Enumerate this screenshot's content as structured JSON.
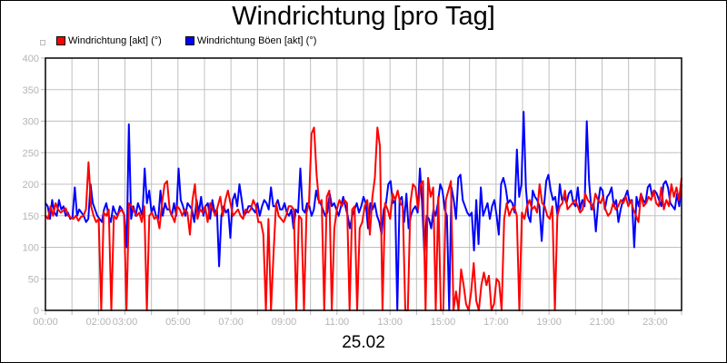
{
  "chart_data": {
    "type": "line",
    "title": "Windrichtung [pro Tag]",
    "xlabel": "25.02",
    "ylabel": "",
    "ylim": [
      0,
      400
    ],
    "xlim_hours": [
      0,
      24
    ],
    "yticks": [
      0,
      50,
      100,
      150,
      200,
      250,
      300,
      350,
      400
    ],
    "xtick_labels": [
      "00:00",
      "02:00",
      "03:00",
      "05:00",
      "07:00",
      "09:00",
      "11:00",
      "13:00",
      "15:00",
      "17:00",
      "19:00",
      "21:00",
      "23:00"
    ],
    "xtick_hours": [
      0,
      2,
      3,
      5,
      7,
      9,
      11,
      13,
      15,
      17,
      19,
      21,
      23
    ],
    "grid": true,
    "legend_position": "top-left",
    "colors": {
      "red": "#ff0000",
      "blue": "#0000ff"
    },
    "series": [
      {
        "name": "Windrichtung [akt] (°)",
        "color": "#ff0000",
        "values": [
          150,
          145,
          165,
          150,
          170,
          160,
          155,
          158,
          162,
          150,
          147,
          145,
          150,
          142,
          148,
          150,
          160,
          235,
          165,
          150,
          140,
          145,
          0,
          155,
          150,
          160,
          0,
          150,
          145,
          155,
          160,
          152,
          0,
          170,
          165,
          158,
          150,
          155,
          140,
          165,
          0,
          150,
          155,
          145,
          150,
          130,
          170,
          200,
          205,
          160,
          150,
          140,
          165,
          160,
          150,
          160,
          155,
          120,
          175,
          200,
          145,
          160,
          155,
          165,
          140,
          170,
          160,
          150,
          165,
          180,
          150,
          175,
          190,
          170,
          150,
          155,
          160,
          150,
          145,
          160,
          155,
          160,
          175,
          165,
          140,
          140,
          120,
          0,
          145,
          0,
          90,
          170,
          150,
          145,
          140,
          150,
          165,
          165,
          160,
          0,
          150,
          145,
          0,
          155,
          170,
          280,
          290,
          215,
          170,
          175,
          0,
          180,
          190,
          0,
          130,
          160,
          175,
          165,
          175,
          170,
          0,
          160,
          165,
          0,
          130,
          140,
          165,
          175,
          120,
          180,
          210,
          290,
          260,
          0,
          170,
          160,
          145,
          185,
          175,
          190,
          170,
          165,
          0,
          0,
          170,
          200,
          195,
          160,
          200,
          205,
          0,
          210,
          180,
          195,
          0,
          180,
          0,
          0,
          175,
          190,
          205,
          0,
          30,
          0,
          65,
          40,
          10,
          0,
          30,
          75,
          15,
          0,
          40,
          60,
          40,
          55,
          0,
          10,
          50,
          45,
          0,
          145,
          170,
          150,
          160,
          165,
          150,
          0,
          155,
          145,
          165,
          175,
          160,
          165,
          155,
          200,
          170,
          165,
          150,
          145,
          165,
          0,
          150,
          165,
          170,
          190,
          160,
          165,
          170,
          175,
          165,
          155,
          160,
          185,
          175,
          170,
          160,
          185,
          175,
          170,
          180,
          160,
          150,
          155,
          170,
          160,
          165,
          175,
          170,
          180,
          165,
          175,
          160,
          150,
          140,
          185,
          165,
          170,
          180,
          175,
          190,
          170,
          165,
          195,
          160,
          175,
          165,
          200,
          180,
          195,
          175,
          210
        ]
      },
      {
        "name": "Windrichtung Böen [akt] (°)",
        "color": "#0000ff",
        "values": [
          170,
          165,
          145,
          175,
          155,
          150,
          175,
          160,
          165,
          150,
          155,
          145,
          148,
          195,
          150,
          160,
          155,
          150,
          140,
          145,
          200,
          170,
          160,
          150,
          145,
          140,
          160,
          170,
          150,
          140,
          165,
          155,
          150,
          165,
          160,
          150,
          100,
          295,
          145,
          165,
          150,
          170,
          160,
          150,
          225,
          170,
          190,
          155,
          165,
          150,
          145,
          190,
          150,
          170,
          160,
          160,
          150,
          170,
          150,
          225,
          175,
          165,
          150,
          170,
          165,
          160,
          140,
          175,
          155,
          180,
          150,
          165,
          170,
          145,
          175,
          155,
          160,
          70,
          150,
          165,
          155,
          160,
          115,
          175,
          185,
          165,
          200,
          175,
          150,
          155,
          165,
          165,
          160,
          155,
          170,
          150,
          165,
          175,
          170,
          160,
          195,
          165,
          165,
          175,
          160,
          160,
          170,
          155,
          150,
          160,
          130,
          160,
          155,
          225,
          160,
          155,
          170,
          165,
          150,
          160,
          190,
          175,
          170,
          160,
          150,
          155,
          185,
          165,
          170,
          160,
          150,
          165,
          180,
          165,
          150,
          130,
          150,
          160,
          170,
          155,
          165,
          180,
          170,
          130,
          170,
          160,
          170,
          150,
          140,
          120,
          160,
          170,
          200,
          205,
          170,
          175,
          0,
          175,
          180,
          140,
          185,
          130,
          150,
          160,
          165,
          155,
          225,
          170,
          90,
          150,
          145,
          130,
          160,
          150,
          170,
          200,
          190,
          160,
          150,
          0,
          195,
          175,
          145,
          210,
          215,
          175,
          165,
          155,
          150,
          155,
          95,
          175,
          105,
          195,
          150,
          160,
          170,
          145,
          165,
          175,
          150,
          120,
          200,
          210,
          195,
          170,
          175,
          170,
          155,
          255,
          180,
          200,
          315,
          195,
          150,
          140,
          190,
          180,
          175,
          165,
          110,
          165,
          205,
          215,
          190,
          175,
          180,
          150,
          200,
          175,
          180,
          170,
          185,
          190,
          170,
          165,
          195,
          160,
          175,
          165,
          300,
          205,
          160,
          170,
          125,
          170,
          195,
          190,
          160,
          180,
          185,
          195,
          165,
          175,
          140,
          160,
          175,
          180,
          190,
          170,
          175,
          100,
          180,
          165,
          185,
          175,
          170,
          195,
          200,
          180,
          190,
          185,
          175,
          165,
          200,
          205,
          195,
          170,
          165,
          160,
          185,
          165,
          200
        ]
      }
    ]
  }
}
